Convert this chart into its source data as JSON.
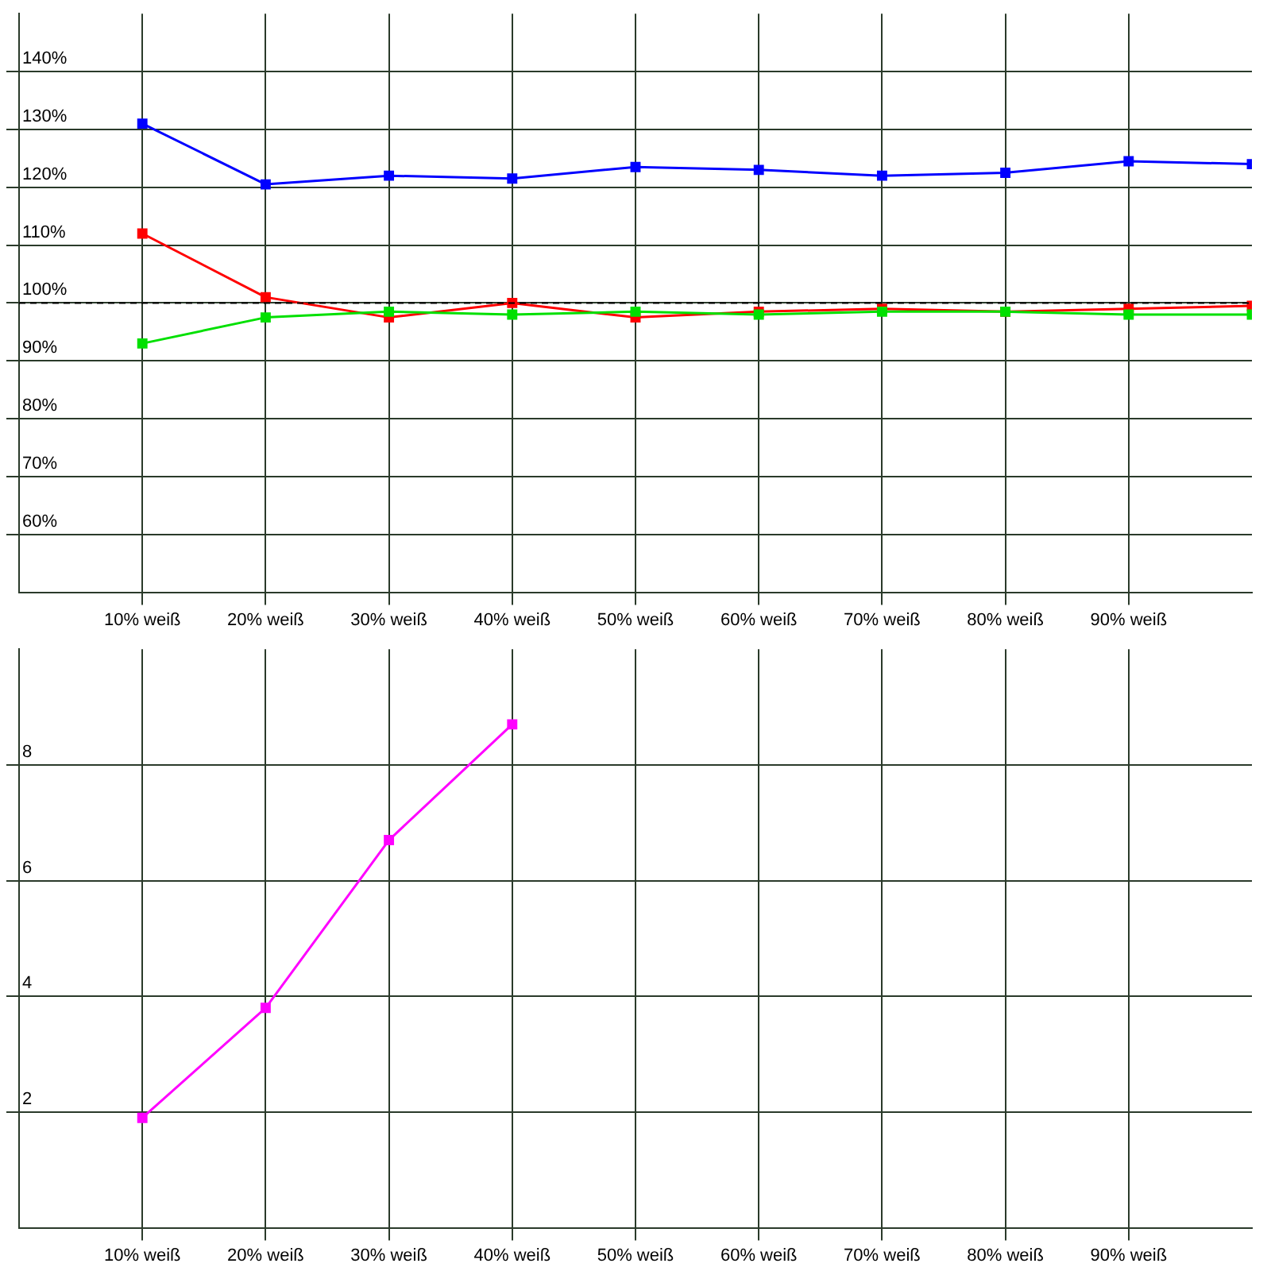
{
  "chart_data": [
    {
      "type": "line",
      "x": [
        10,
        20,
        30,
        40,
        50,
        60,
        70,
        80,
        90,
        100
      ],
      "series": [
        {
          "color": "#0000ff",
          "values": [
            131,
            120.5,
            122,
            121.5,
            123.5,
            123,
            122,
            122.5,
            124.5,
            124
          ]
        },
        {
          "color": "#ff0000",
          "values": [
            112,
            101,
            97.5,
            100,
            97.5,
            98.5,
            99,
            98.5,
            99,
            99.5
          ]
        },
        {
          "color": "#00e000",
          "values": [
            93,
            97.5,
            98.5,
            98,
            98.5,
            98,
            98.5,
            98.5,
            98,
            98
          ]
        }
      ],
      "xlim": [
        0,
        100
      ],
      "xticks": [
        {
          "value": 10,
          "label": "10% weiß"
        },
        {
          "value": 20,
          "label": "20% weiß"
        },
        {
          "value": 30,
          "label": "30% weiß"
        },
        {
          "value": 40,
          "label": "40% weiß"
        },
        {
          "value": 50,
          "label": "50% weiß"
        },
        {
          "value": 60,
          "label": "60% weiß"
        },
        {
          "value": 70,
          "label": "70% weiß"
        },
        {
          "value": 80,
          "label": "80% weiß"
        },
        {
          "value": 90,
          "label": "90% weiß"
        }
      ],
      "ylim": [
        50,
        150
      ],
      "yticks": [
        {
          "value": 60,
          "label": "60%"
        },
        {
          "value": 70,
          "label": "70%"
        },
        {
          "value": 80,
          "label": "80%"
        },
        {
          "value": 90,
          "label": "90%"
        },
        {
          "value": 100,
          "label": "100%"
        },
        {
          "value": 110,
          "label": "110%"
        },
        {
          "value": 120,
          "label": "120%"
        },
        {
          "value": 130,
          "label": "130%"
        },
        {
          "value": 140,
          "label": "140%"
        }
      ],
      "ref_lines": [
        {
          "axis": "y",
          "value": 100,
          "color": "#000000",
          "line_style": "dashed"
        }
      ],
      "grid": true,
      "legend": false,
      "marker": "square",
      "line_style": "solid"
    },
    {
      "type": "line",
      "x": [
        10,
        20,
        30,
        40
      ],
      "series": [
        {
          "color": "#ff00ff",
          "values": [
            1.9,
            3.8,
            6.7,
            8.7
          ]
        }
      ],
      "xlim": [
        0,
        100
      ],
      "xticks": [
        {
          "value": 10,
          "label": "10% weiß"
        },
        {
          "value": 20,
          "label": "20% weiß"
        },
        {
          "value": 30,
          "label": "30% weiß"
        },
        {
          "value": 40,
          "label": "40% weiß"
        },
        {
          "value": 50,
          "label": "50% weiß"
        },
        {
          "value": 60,
          "label": "60% weiß"
        },
        {
          "value": 70,
          "label": "70% weiß"
        },
        {
          "value": 80,
          "label": "80% weiß"
        },
        {
          "value": 90,
          "label": "90% weiß"
        }
      ],
      "ylim": [
        0,
        10
      ],
      "yticks": [
        2,
        4,
        6,
        8
      ],
      "grid": true,
      "legend": false,
      "marker": "square",
      "line_style": "solid"
    }
  ]
}
